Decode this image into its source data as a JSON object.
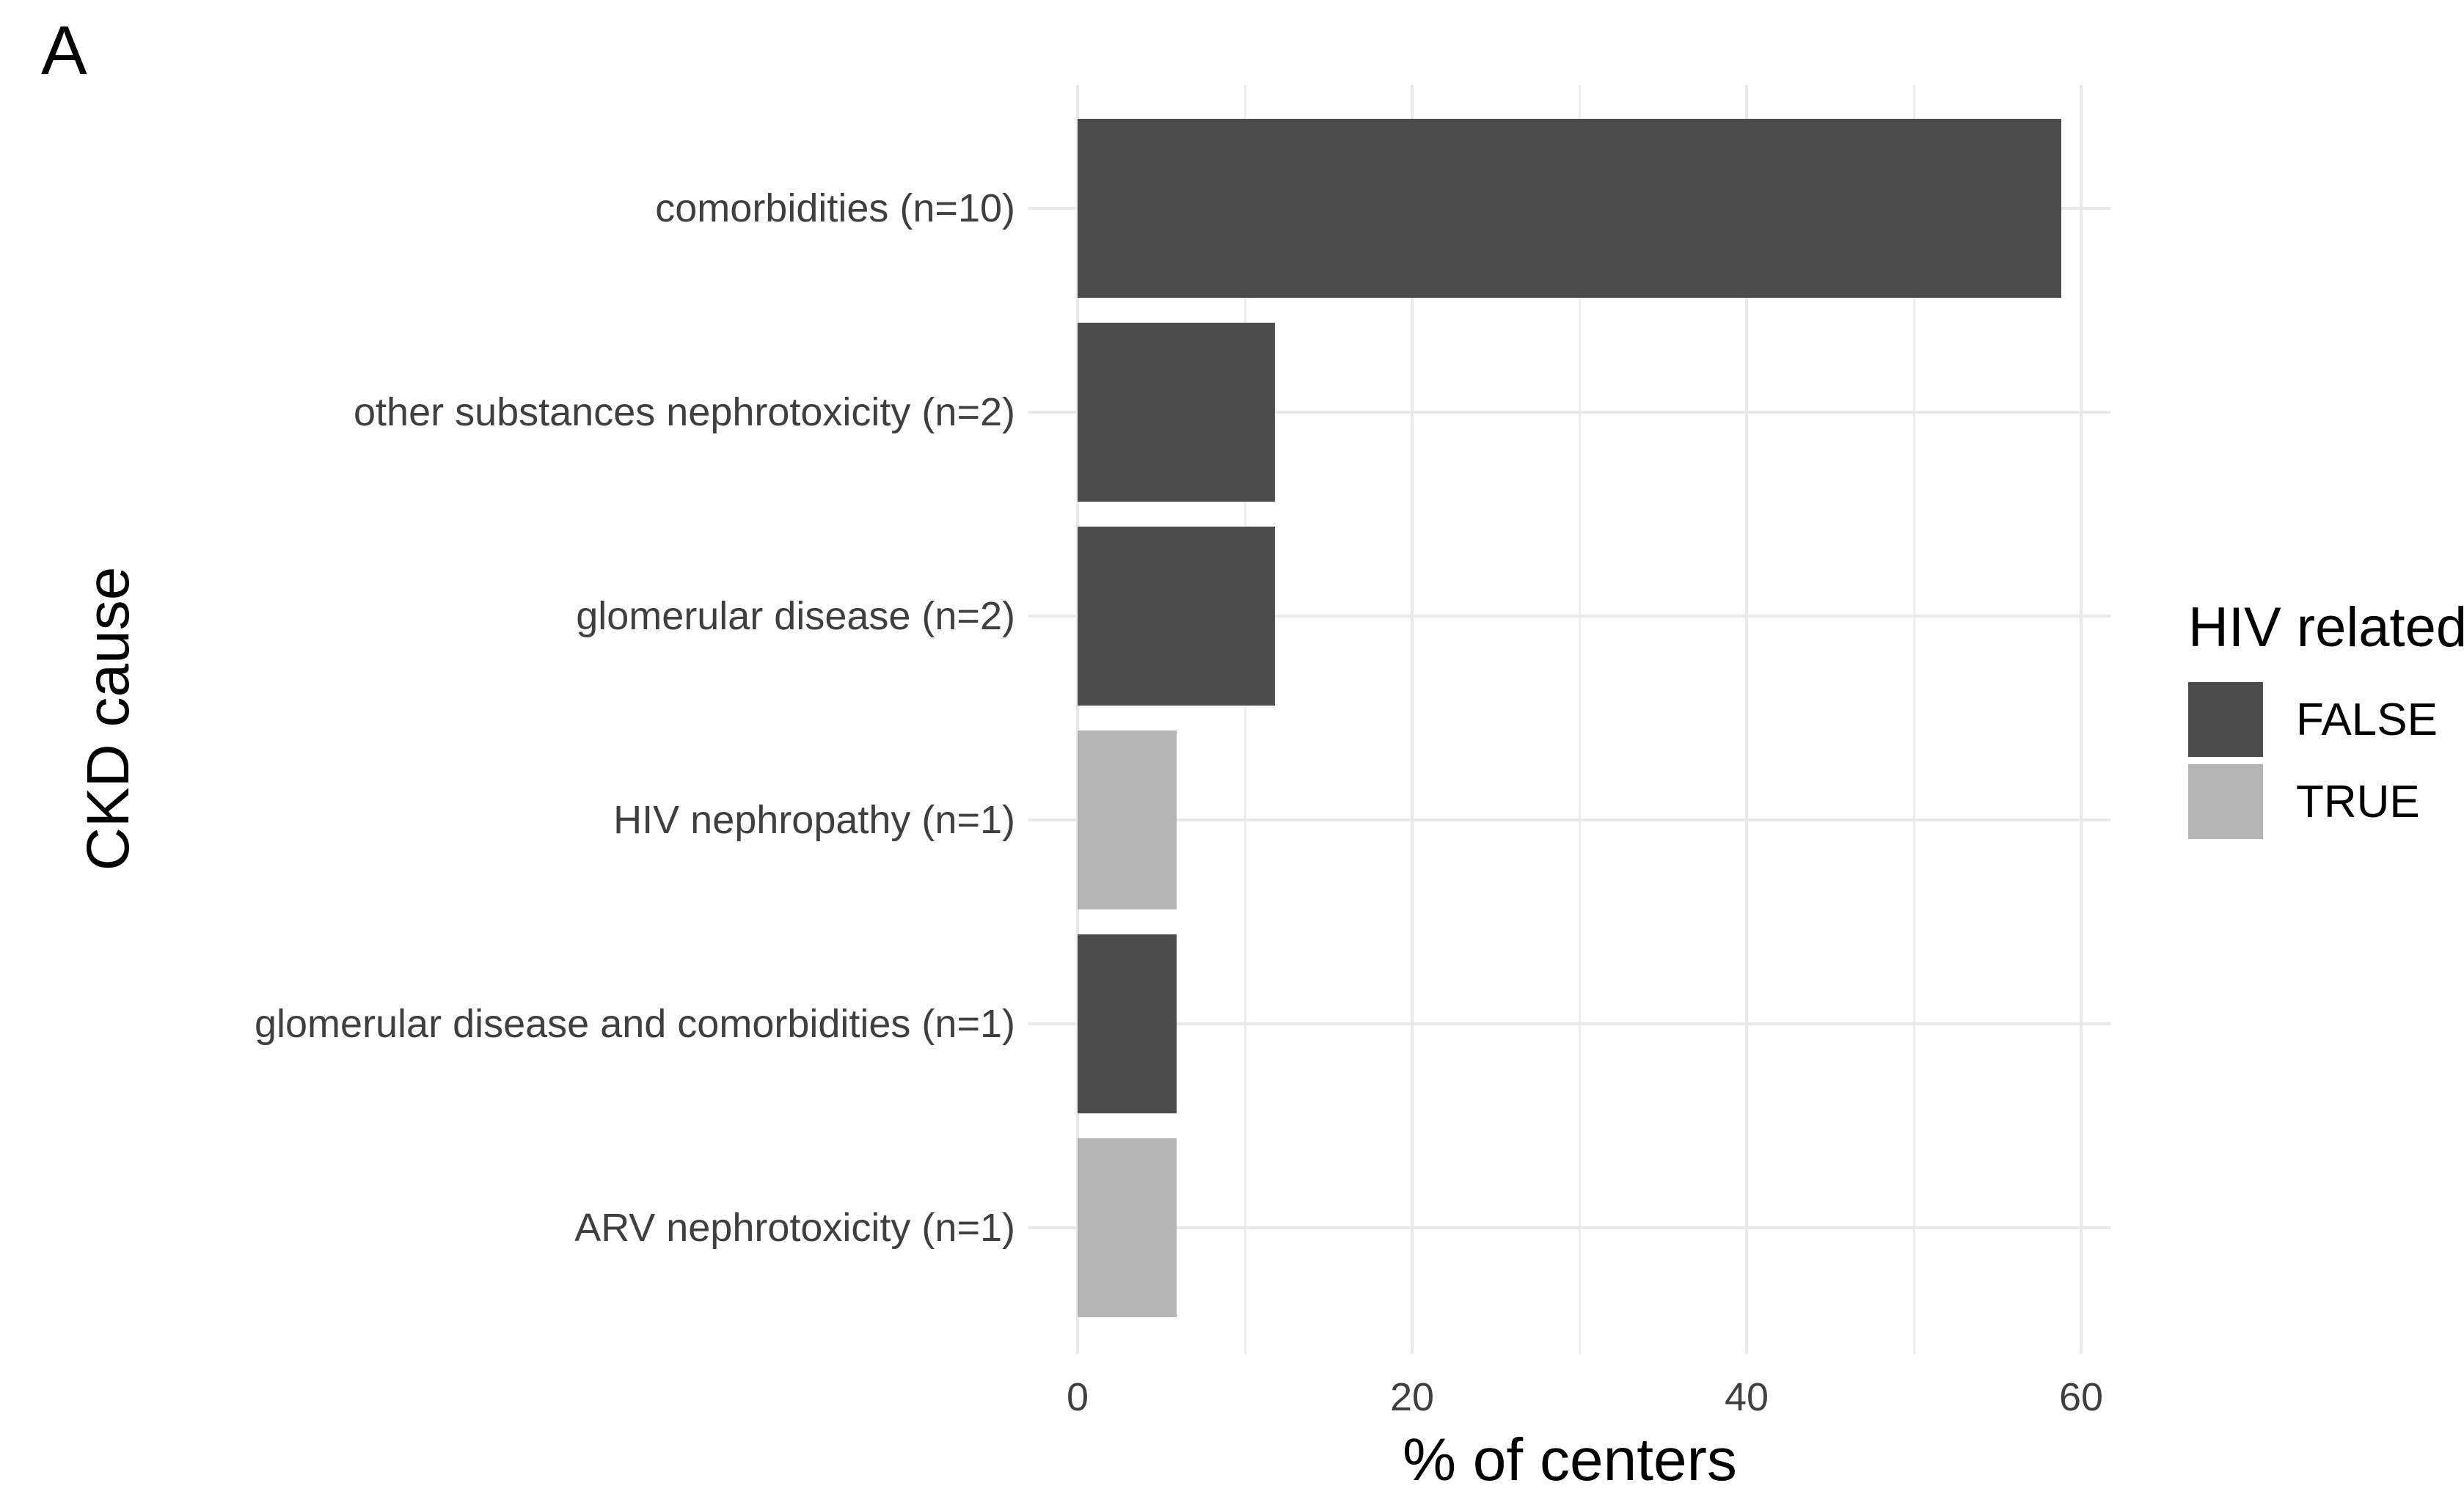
{
  "figure": {
    "tag": "A",
    "background": "#ffffff"
  },
  "chart_data": {
    "type": "bar",
    "orientation": "horizontal",
    "title": "",
    "xlabel": "% of centers",
    "ylabel": "CKD cause",
    "categories": [
      "comorbidities (n=10)",
      "other substances nephrotoxicity (n=2)",
      "glomerular disease (n=2)",
      "HIV nephropathy (n=1)",
      "glomerular disease and comorbidities (n=1)",
      "ARV nephrotoxicity (n=1)"
    ],
    "values": [
      58.8,
      11.8,
      11.8,
      5.9,
      5.9,
      5.9
    ],
    "counts": [
      10,
      2,
      2,
      1,
      1,
      1
    ],
    "hiv_related": [
      false,
      false,
      false,
      true,
      false,
      true
    ],
    "x_ticks": [
      0,
      20,
      40,
      60
    ],
    "x_minor_gridlines": [
      10,
      30,
      50
    ],
    "xlim": [
      -2.9,
      61.8
    ],
    "grid": true,
    "legend": {
      "title": "HIV related",
      "position": "right",
      "entries": [
        {
          "label": "FALSE",
          "value": false,
          "color": "#4c4c4c"
        },
        {
          "label": "TRUE",
          "value": true,
          "color": "#b4b4b4"
        }
      ]
    },
    "colors": {
      "false_fill": "#4c4c4c",
      "true_fill": "#b4b4b4",
      "major_gridline": "#e9e9e9",
      "minor_gridline": "#eeeeee",
      "axis_text": "#3f3f3f",
      "title_text": "#000000"
    }
  }
}
